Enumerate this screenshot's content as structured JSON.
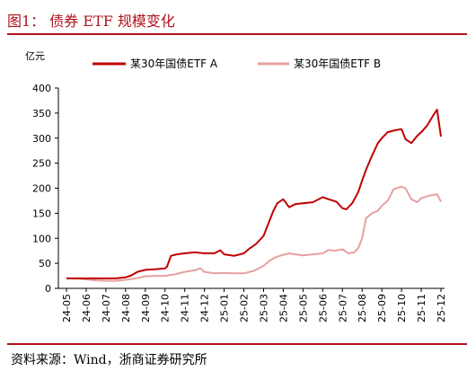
{
  "figure": {
    "title": "图1： 债券 ETF 规模变化",
    "source": "资料来源：Wind，浙商证券研究所",
    "accent_color": "#b0131d"
  },
  "chart_data": {
    "type": "line",
    "title": "",
    "ylabel": "亿元",
    "ylim": [
      0,
      400
    ],
    "yticks": [
      0,
      50,
      100,
      150,
      200,
      250,
      300,
      350,
      400
    ],
    "grid": false,
    "legend_position": "top",
    "x_categories": [
      "24-05",
      "24-06",
      "24-07",
      "24-08",
      "24-09",
      "24-10",
      "24-11",
      "24-12",
      "25-01",
      "25-02",
      "25-03",
      "25-04",
      "25-05",
      "25-06",
      "25-07",
      "25-08",
      "25-09",
      "25-10",
      "25-11",
      "25-12"
    ],
    "series": [
      {
        "name": "某30年国债ETF A",
        "color": "#c00000",
        "x": [
          0,
          0.5,
          1,
          1.5,
          2,
          2.5,
          3,
          3.3,
          3.6,
          4,
          4.5,
          5,
          5.1,
          5.3,
          5.6,
          6,
          6.5,
          7,
          7.5,
          7.8,
          8,
          8.5,
          9,
          9.3,
          9.6,
          10,
          10.3,
          10.5,
          10.7,
          11,
          11.3,
          11.6,
          12,
          12.5,
          13,
          13.3,
          13.7,
          14,
          14.2,
          14.5,
          14.8,
          15,
          15.2,
          15.5,
          15.8,
          16,
          16.3,
          16.6,
          17,
          17.2,
          17.5,
          17.8,
          18,
          18.3,
          18.6,
          18.8,
          19
        ],
        "y": [
          20,
          20,
          20,
          20,
          20,
          20,
          22,
          26,
          33,
          37,
          38,
          40,
          43,
          65,
          68,
          70,
          72,
          70,
          70,
          76,
          68,
          65,
          70,
          80,
          88,
          105,
          135,
          155,
          170,
          178,
          162,
          168,
          170,
          172,
          182,
          178,
          173,
          160,
          158,
          170,
          192,
          215,
          237,
          265,
          290,
          300,
          312,
          315,
          318,
          298,
          290,
          305,
          312,
          325,
          345,
          357,
          303
        ]
      },
      {
        "name": "某30年国债ETF B",
        "color": "#e6a0a0",
        "x": [
          0,
          0.5,
          1,
          1.5,
          2,
          2.5,
          3,
          3.5,
          4,
          4.5,
          5,
          5.5,
          6,
          6.5,
          6.8,
          7,
          7.5,
          8,
          8.5,
          9,
          9.5,
          10,
          10.3,
          10.6,
          11,
          11.3,
          11.6,
          12,
          12.5,
          13,
          13.3,
          13.6,
          14,
          14.3,
          14.6,
          14.8,
          15,
          15.2,
          15.5,
          15.8,
          16,
          16.3,
          16.6,
          17,
          17.2,
          17.5,
          17.8,
          18,
          18.4,
          18.8,
          19
        ],
        "y": [
          20,
          20,
          18,
          16,
          15,
          15,
          17,
          20,
          24,
          25,
          25,
          28,
          33,
          36,
          40,
          33,
          30,
          31,
          30,
          30,
          35,
          45,
          55,
          62,
          67,
          70,
          68,
          66,
          68,
          70,
          77,
          75,
          78,
          70,
          72,
          80,
          100,
          140,
          150,
          155,
          165,
          175,
          198,
          203,
          200,
          178,
          172,
          180,
          185,
          188,
          173
        ]
      }
    ]
  }
}
